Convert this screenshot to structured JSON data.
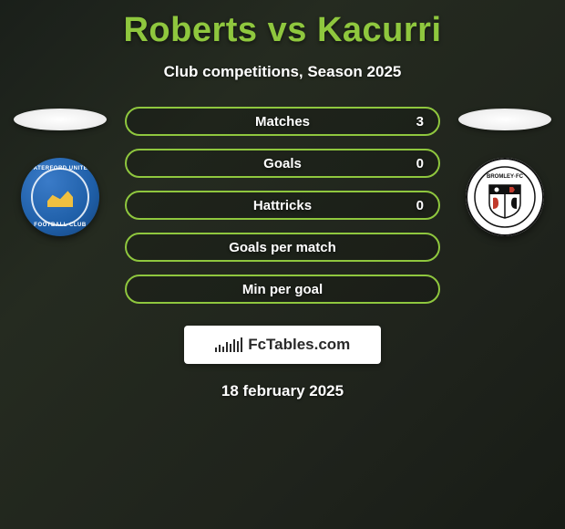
{
  "title": "Roberts vs Kacurri",
  "subtitle": "Club competitions, Season 2025",
  "date": "18 february 2025",
  "brand": "FcTables.com",
  "colors": {
    "accent": "#8fc73e",
    "text": "#ffffff",
    "pill_border": "#8fc73e"
  },
  "left_club": {
    "name": "Waterford United Football Club",
    "text_top": "WATERFORD UNITED",
    "text_bottom": "FOOTBALL CLUB",
    "primary_color": "#1f5fa8"
  },
  "right_club": {
    "name": "Bromley FC",
    "primary_color": "#ffffff"
  },
  "stats": [
    {
      "label": "Matches",
      "value": "3"
    },
    {
      "label": "Goals",
      "value": "0"
    },
    {
      "label": "Hattricks",
      "value": "0"
    },
    {
      "label": "Goals per match",
      "value": ""
    },
    {
      "label": "Min per goal",
      "value": ""
    }
  ],
  "brand_bars": [
    5,
    8,
    6,
    11,
    9,
    14,
    12,
    16
  ]
}
